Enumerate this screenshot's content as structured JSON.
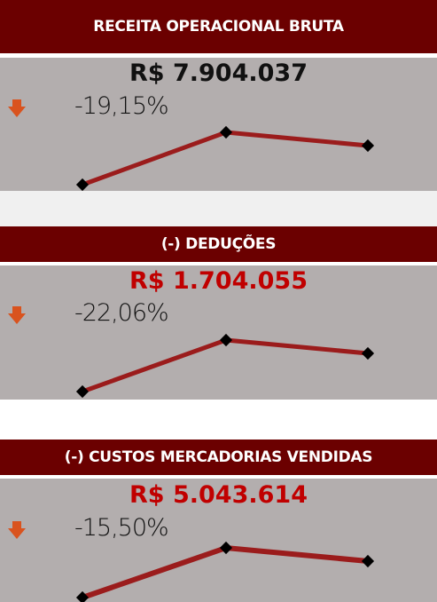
{
  "cards": [
    {
      "title": "RECEITA OPERACIONAL BRUTA",
      "value": "R$ 7.904.037",
      "change": "-19,15%"
    },
    {
      "title": "(-) DEDUÇÕES",
      "value": "R$ 1.704.055",
      "change": "-22,06%"
    },
    {
      "title": "(-) CUSTOS MERCADORIAS VENDIDAS",
      "value": "R$ 5.043.614",
      "change": "-15,50%"
    }
  ]
}
